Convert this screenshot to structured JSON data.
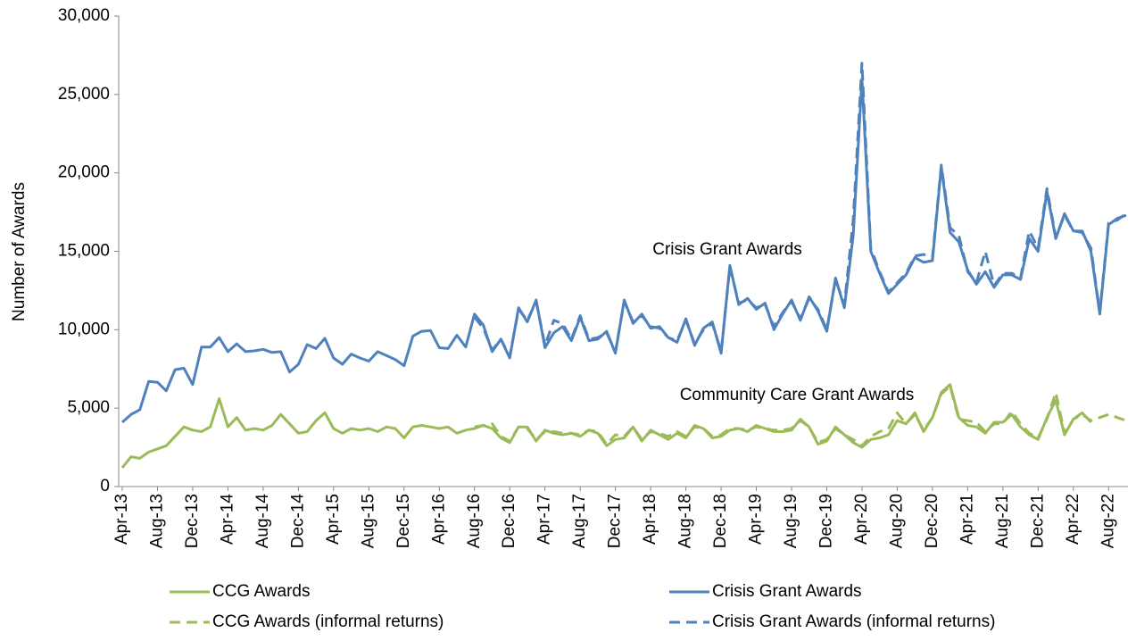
{
  "chart_data": {
    "type": "line",
    "y_axis_label": "Number of Awards",
    "annotations": [
      "Crisis Grant Awards",
      "Community Care Grant Awards"
    ],
    "categories": [
      "Apr-13",
      null,
      null,
      null,
      "Aug-13",
      null,
      null,
      null,
      "Dec-13",
      null,
      null,
      null,
      "Apr-14",
      null,
      null,
      null,
      "Aug-14",
      null,
      null,
      null,
      "Dec-14",
      null,
      null,
      null,
      "Apr-15",
      null,
      null,
      null,
      "Aug-15",
      null,
      null,
      null,
      "Dec-15",
      null,
      null,
      null,
      "Apr-16",
      null,
      null,
      null,
      "Aug-16",
      null,
      null,
      null,
      "Dec-16",
      null,
      null,
      null,
      "Apr-17",
      null,
      null,
      null,
      "Aug-17",
      null,
      null,
      null,
      "Dec-17",
      null,
      null,
      null,
      "Apr-18",
      null,
      null,
      null,
      "Aug-18",
      null,
      null,
      null,
      "Dec-18",
      null,
      null,
      null,
      "Apr-19",
      null,
      null,
      null,
      "Aug-19",
      null,
      null,
      null,
      "Dec-19",
      null,
      null,
      null,
      "Apr-20",
      null,
      null,
      null,
      "Aug-20",
      null,
      null,
      null,
      "Dec-20",
      null,
      null,
      null,
      "Apr-21",
      null,
      null,
      null,
      "Aug-21",
      null,
      null,
      null,
      "Dec-21",
      null,
      null,
      null,
      "Apr-22",
      null,
      null,
      null,
      "Aug-22",
      null,
      null
    ],
    "series": [
      {
        "name": "CCG Awards",
        "color": "#9bbb59",
        "dashed": false,
        "values": [
          1200,
          1900,
          1800,
          2200,
          2400,
          2600,
          3200,
          3800,
          3600,
          3500,
          3800,
          5600,
          3800,
          4400,
          3600,
          3700,
          3600,
          3900,
          4600,
          4000,
          3400,
          3500,
          4200,
          4700,
          3700,
          3400,
          3700,
          3600,
          3700,
          3500,
          3800,
          3700,
          3100,
          3800,
          3900,
          3800,
          3700,
          3800,
          3400,
          3600,
          3700,
          3900,
          3700,
          3100,
          2800,
          3800,
          3800,
          2900,
          3600,
          3400,
          3300,
          3400,
          3200,
          3600,
          3400,
          2600,
          3000,
          3100,
          3800,
          2900,
          3600,
          3300,
          3000,
          3400,
          3100,
          3900,
          3700,
          3100,
          3200,
          3600,
          3700,
          3500,
          3900,
          3700,
          3500,
          3500,
          3600,
          4300,
          3800,
          2700,
          2900,
          3800,
          3300,
          2800,
          2500,
          3000,
          3100,
          3300,
          4200,
          4000,
          4700,
          3500,
          4400,
          6000,
          6500,
          4400,
          3900,
          3800,
          3400,
          4100,
          4100,
          4600,
          3800,
          3300,
          3000,
          4400,
          5500,
          3300,
          4300,
          4700,
          4100,
          null,
          null,
          null,
          null
        ]
      },
      {
        "name": "Crisis Grant Awards",
        "color": "#4f81bd",
        "dashed": false,
        "values": [
          4100,
          4600,
          4900,
          6700,
          6650,
          6100,
          7450,
          7550,
          6500,
          8900,
          8900,
          9500,
          8600,
          9100,
          8600,
          8650,
          8750,
          8550,
          8600,
          7300,
          7800,
          9050,
          8800,
          9450,
          8200,
          7800,
          8450,
          8200,
          8000,
          8600,
          8350,
          8100,
          7700,
          9600,
          9900,
          9950,
          8850,
          8800,
          9650,
          8900,
          11000,
          10300,
          8600,
          9400,
          8200,
          11400,
          10500,
          11900,
          8850,
          9800,
          10200,
          9300,
          10800,
          9300,
          9400,
          9900,
          8500,
          11900,
          10400,
          11000,
          10100,
          10200,
          9500,
          9200,
          10700,
          9000,
          10100,
          10500,
          8500,
          14100,
          11600,
          12000,
          11300,
          11700,
          10000,
          11000,
          11900,
          10600,
          12100,
          11200,
          9900,
          13300,
          11400,
          16000,
          26000,
          15000,
          13600,
          12300,
          12900,
          13500,
          14600,
          14300,
          14400,
          20400,
          16200,
          15600,
          13800,
          12900,
          13700,
          12700,
          13500,
          13500,
          13200,
          15800,
          15000,
          18800,
          15800,
          17400,
          16300,
          16300,
          15000,
          11000,
          16700,
          17100,
          17300
        ]
      },
      {
        "name": "CCG Awards (informal returns)",
        "color": "#9bbb59",
        "dashed": true,
        "values": [
          null,
          null,
          null,
          null,
          null,
          null,
          null,
          null,
          null,
          null,
          null,
          null,
          null,
          null,
          null,
          null,
          null,
          null,
          null,
          null,
          null,
          null,
          null,
          null,
          null,
          null,
          null,
          null,
          null,
          null,
          null,
          null,
          null,
          null,
          null,
          null,
          null,
          null,
          null,
          null,
          3800,
          3900,
          4000,
          3200,
          2900,
          3800,
          3700,
          3000,
          3500,
          3500,
          3400,
          3400,
          3300,
          3600,
          3500,
          2700,
          3300,
          3200,
          3800,
          3000,
          3500,
          3400,
          3200,
          3500,
          3200,
          3800,
          3700,
          3200,
          3300,
          3700,
          3700,
          3600,
          3800,
          3700,
          3600,
          3600,
          3700,
          4200,
          3800,
          2800,
          3000,
          3700,
          3300,
          3000,
          2600,
          3200,
          3500,
          3700,
          4700,
          4000,
          4600,
          3600,
          4400,
          5900,
          6400,
          4300,
          4200,
          4100,
          3500,
          4000,
          4000,
          4800,
          4000,
          3400,
          3100,
          4300,
          6000,
          3400,
          4300,
          4600,
          4200,
          4400,
          4600,
          4400,
          4200
        ]
      },
      {
        "name": "Crisis Grant Awards (informal returns)",
        "color": "#4f81bd",
        "dashed": true,
        "values": [
          null,
          null,
          null,
          null,
          null,
          null,
          null,
          null,
          null,
          null,
          null,
          null,
          null,
          null,
          null,
          null,
          null,
          null,
          null,
          null,
          null,
          null,
          null,
          null,
          null,
          null,
          null,
          null,
          null,
          null,
          null,
          null,
          null,
          null,
          null,
          null,
          null,
          null,
          null,
          null,
          10800,
          10100,
          8700,
          9400,
          8300,
          11300,
          10600,
          11800,
          9000,
          10600,
          10400,
          9400,
          10900,
          9400,
          9500,
          9800,
          8600,
          11800,
          10500,
          10900,
          10200,
          10100,
          9500,
          9300,
          10600,
          9100,
          10000,
          10400,
          8600,
          14000,
          11700,
          11900,
          11400,
          11600,
          10200,
          11100,
          11800,
          10700,
          12000,
          11300,
          10000,
          13200,
          11600,
          17000,
          27000,
          15200,
          13700,
          12400,
          13000,
          13600,
          14700,
          14800,
          14600,
          20500,
          16500,
          16000,
          13700,
          13000,
          15000,
          12800,
          13600,
          13600,
          13300,
          16300,
          15200,
          19000,
          15900,
          17300,
          16300,
          16200,
          15200,
          11100,
          16800,
          17000,
          17400
        ]
      }
    ],
    "ylim": [
      0,
      30000
    ],
    "yticks": [
      0,
      {
        "value": 5000,
        "label": "5,000"
      },
      {
        "value": 10000,
        "label": "10,000"
      },
      {
        "value": 15000,
        "label": "15,000"
      },
      {
        "value": 20000,
        "label": "20,000"
      },
      {
        "value": 25000,
        "label": "25,000"
      },
      {
        "value": 30000,
        "label": "30,000"
      }
    ],
    "grid": false,
    "legend": "bottom"
  }
}
